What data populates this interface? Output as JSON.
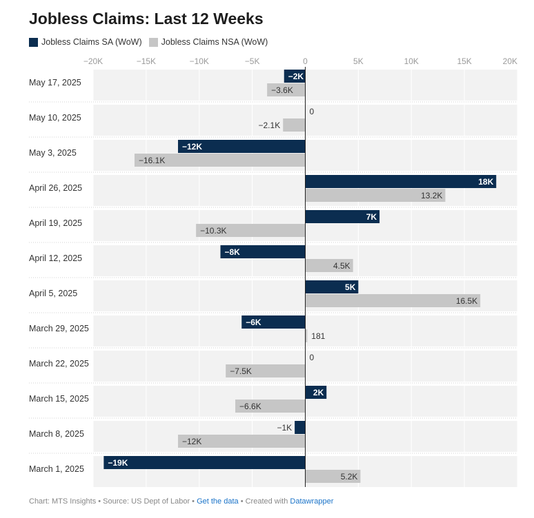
{
  "title": "Jobless Claims: Last 12 Weeks",
  "legend": [
    {
      "label": "Jobless Claims SA (WoW)",
      "color": "#0b2d50"
    },
    {
      "label": "Jobless Claims NSA (WoW)",
      "color": "#c6c6c6"
    }
  ],
  "chart_data": {
    "type": "bar",
    "orientation": "horizontal",
    "categories": [
      "May 17, 2025",
      "May 10, 2025",
      "May 3, 2025",
      "April 26, 2025",
      "April 19, 2025",
      "April 12, 2025",
      "April 5, 2025",
      "March 29, 2025",
      "March 22, 2025",
      "March 15, 2025",
      "March 8, 2025",
      "March 1, 2025"
    ],
    "series": [
      {
        "name": "Jobless Claims SA (WoW)",
        "color": "#0b2d50",
        "values": [
          -2000,
          0,
          -12000,
          18000,
          7000,
          -8000,
          5000,
          -6000,
          0,
          2000,
          -1000,
          -19000
        ],
        "labels": [
          "−2K",
          "0",
          "−12K",
          "18K",
          "7K",
          "−8K",
          "5K",
          "−6K",
          "0",
          "2K",
          "−1K",
          "−19K"
        ]
      },
      {
        "name": "Jobless Claims NSA (WoW)",
        "color": "#c6c6c6",
        "values": [
          -3600,
          -2100,
          -16100,
          13200,
          -10300,
          4500,
          16500,
          181,
          -7500,
          -6600,
          -12000,
          5200
        ],
        "labels": [
          "−3.6K",
          "−2.1K",
          "−16.1K",
          "13.2K",
          "−10.3K",
          "4.5K",
          "16.5K",
          "181",
          "−7.5K",
          "−6.6K",
          "−12K",
          "5.2K"
        ]
      }
    ],
    "xlim": [
      -20000,
      20000
    ],
    "xticks": [
      -20000,
      -15000,
      -10000,
      -5000,
      0,
      5000,
      10000,
      15000,
      20000
    ],
    "xtick_labels": [
      "−20K",
      "−15K",
      "−10K",
      "−5K",
      "0",
      "5K",
      "10K",
      "15K",
      "20K"
    ],
    "legend_position": "top-left",
    "grid": true
  },
  "footer": {
    "credit": "Chart: MTS Insights • Source: US Dept of Labor • ",
    "get_data": "Get the data",
    "created": " • Created with ",
    "tool": "Datawrapper"
  }
}
